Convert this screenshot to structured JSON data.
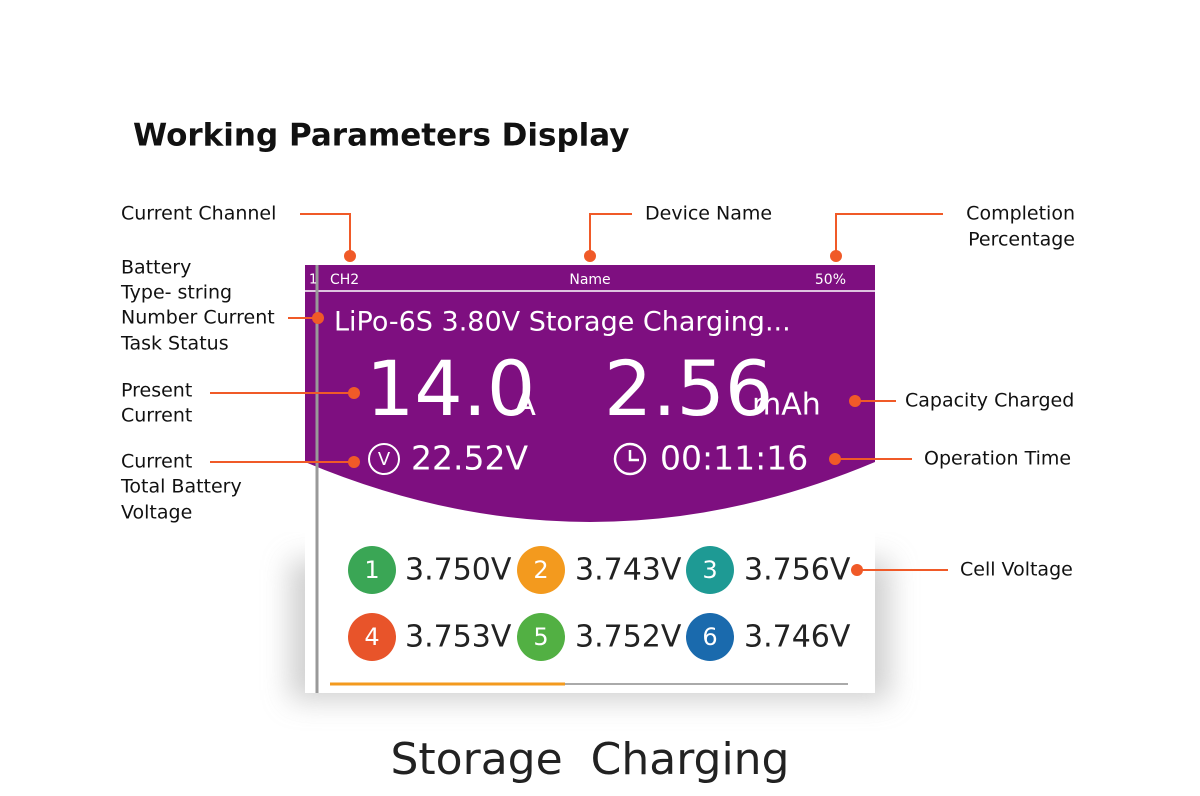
{
  "title": "Working Parameters Display",
  "screen": {
    "channel_index": "1",
    "channel": "CH2",
    "device_name": "Name",
    "percentage": "50%",
    "status": "LiPo-6S 3.80V Storage Charging...",
    "current": "14.0",
    "current_unit": "A",
    "capacity": "2.56",
    "capacity_unit": "mAh",
    "voltage_icon": "V",
    "voltage": "22.52V",
    "time": "00:11:16",
    "cells": [
      {
        "index": "1",
        "voltage": "3.750V"
      },
      {
        "index": "2",
        "voltage": "3.743V"
      },
      {
        "index": "3",
        "voltage": "3.756V"
      },
      {
        "index": "4",
        "voltage": "3.753V"
      },
      {
        "index": "5",
        "voltage": "3.752V"
      },
      {
        "index": "6",
        "voltage": "3.746V"
      }
    ]
  },
  "annotations": [
    {
      "lines": [
        "Current Channel"
      ]
    },
    {
      "lines": [
        "Device Name"
      ]
    },
    {
      "lines": [
        "Completion",
        "Percentage"
      ]
    },
    {
      "lines": [
        "Battery",
        "Type- string",
        "Number Current",
        "Task Status"
      ]
    },
    {
      "lines": [
        "Present",
        "Current"
      ]
    },
    {
      "lines": [
        "Current",
        "Total Battery",
        "Voltage"
      ]
    },
    {
      "lines": [
        "Capacity Charged"
      ]
    },
    {
      "lines": [
        "Operation Time"
      ]
    },
    {
      "lines": [
        "Cell Voltage"
      ]
    }
  ],
  "caption": "Storage  Charging"
}
